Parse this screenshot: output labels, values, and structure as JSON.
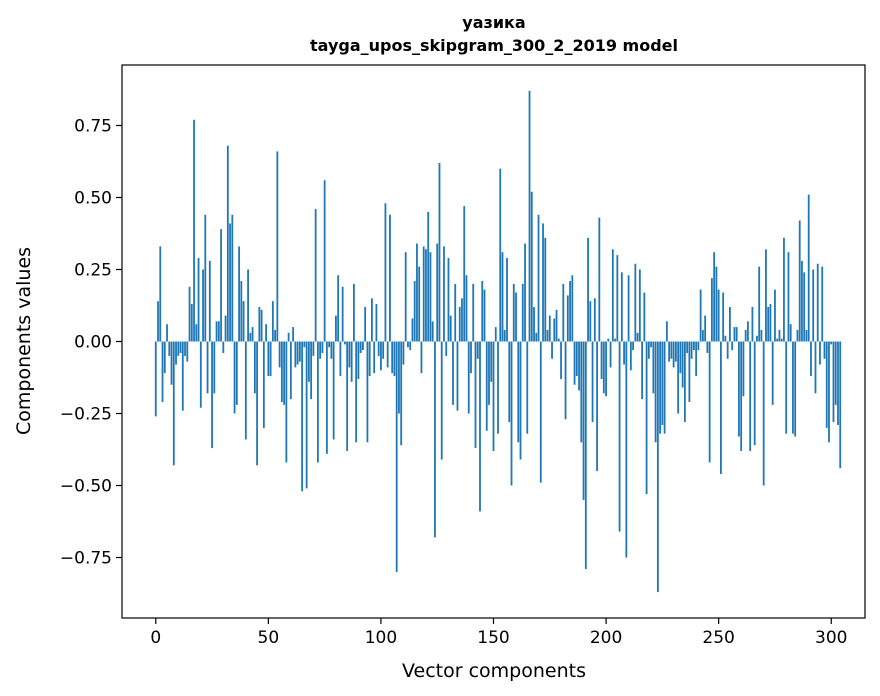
{
  "chart_data": {
    "type": "bar",
    "title": "уазика",
    "subtitle": "tayga_upos_skipgram_300_2_2019 model",
    "xlabel": "Vector components",
    "ylabel": "Components values",
    "xlim": [
      -15,
      315
    ],
    "ylim": [
      -0.96,
      0.96
    ],
    "xticks": [
      0,
      50,
      100,
      150,
      200,
      250,
      300
    ],
    "yticks": [
      -0.75,
      -0.5,
      -0.25,
      0.0,
      0.25,
      0.5,
      0.75
    ],
    "xtick_labels": [
      "0",
      "50",
      "100",
      "150",
      "200",
      "250",
      "300"
    ],
    "ytick_labels": [
      "−0.75",
      "−0.50",
      "−0.25",
      "0.00",
      "0.25",
      "0.50",
      "0.75"
    ],
    "color": "#1f77b4",
    "values": [
      -0.26,
      0.14,
      0.33,
      -0.21,
      -0.11,
      0.06,
      -0.05,
      -0.15,
      -0.43,
      -0.08,
      -0.05,
      -0.04,
      -0.24,
      -0.05,
      -0.07,
      0.19,
      0.13,
      0.77,
      0.06,
      0.29,
      -0.23,
      0.25,
      0.44,
      -0.18,
      0.28,
      -0.37,
      -0.18,
      0.07,
      0.07,
      0.39,
      -0.04,
      0.09,
      0.68,
      0.41,
      0.44,
      -0.25,
      -0.22,
      0.33,
      0.21,
      0.14,
      -0.34,
      0.25,
      0.03,
      0.05,
      -0.18,
      -0.43,
      0.12,
      0.11,
      -0.3,
      0.06,
      -0.12,
      -0.12,
      0.14,
      0.04,
      0.66,
      -0.09,
      -0.21,
      -0.22,
      -0.42,
      0.03,
      -0.2,
      0.05,
      -0.09,
      -0.08,
      -0.07,
      -0.52,
      -0.02,
      -0.51,
      -0.14,
      -0.2,
      -0.05,
      0.46,
      -0.42,
      -0.06,
      -0.04,
      0.56,
      -0.39,
      -0.02,
      -0.06,
      -0.34,
      0.09,
      0.23,
      -0.12,
      0.19,
      -0.01,
      -0.38,
      -0.09,
      -0.14,
      0.2,
      -0.35,
      -0.13,
      -0.04,
      -0.03,
      0.12,
      -0.35,
      -0.12,
      0.15,
      -0.11,
      0.13,
      -0.05,
      -0.1,
      -0.06,
      0.48,
      -0.09,
      0.44,
      -0.11,
      -0.12,
      -0.8,
      -0.25,
      -0.36,
      -0.08,
      0.31,
      -0.02,
      -0.03,
      0.08,
      0.21,
      0.34,
      0.26,
      -0.11,
      0.33,
      0.32,
      0.45,
      0.31,
      0.07,
      -0.68,
      0.34,
      0.62,
      -0.41,
      0.33,
      -0.05,
      0.29,
      0.09,
      -0.22,
      0.2,
      -0.24,
      0.12,
      0.15,
      0.47,
      0.23,
      -0.25,
      -0.11,
      0.2,
      -0.37,
      -0.06,
      -0.59,
      0.21,
      0.18,
      -0.31,
      -0.22,
      -0.14,
      -0.38,
      0.05,
      -0.32,
      0.6,
      0.31,
      0.04,
      0.29,
      -0.28,
      -0.5,
      0.2,
      0.17,
      -0.35,
      -0.41,
      0.2,
      0.34,
      -0.32,
      0.87,
      0.52,
      0.12,
      0.03,
      0.44,
      -0.49,
      0.41,
      0.36,
      0.04,
      0.09,
      -0.06,
      0.08,
      0.11,
      0.01,
      -0.13,
      0.2,
      -0.27,
      0.16,
      0.21,
      0.23,
      -0.15,
      -0.12,
      -0.17,
      -0.35,
      -0.55,
      -0.79,
      0.36,
      0.14,
      -0.28,
      0.15,
      -0.45,
      0.43,
      -0.13,
      -0.18,
      -0.19,
      0.01,
      -0.09,
      0.32,
      0.01,
      0.3,
      -0.66,
      0.24,
      -0.08,
      -0.75,
      0.23,
      -0.1,
      -0.03,
      0.27,
      0.03,
      0.25,
      -0.2,
      0.17,
      -0.53,
      -0.06,
      -0.02,
      -0.18,
      -0.35,
      -0.87,
      -0.32,
      -0.29,
      -0.32,
      0.07,
      -0.07,
      -0.06,
      -0.09,
      -0.07,
      -0.25,
      -0.11,
      -0.16,
      -0.28,
      -0.04,
      -0.21,
      -0.06,
      -0.03,
      -0.12,
      -0.03,
      0.18,
      0.04,
      0.09,
      -0.04,
      -0.42,
      0.22,
      0.31,
      0.26,
      0.18,
      -0.46,
      0.17,
      0.02,
      -0.06,
      0.12,
      -0.03,
      0.05,
      0.05,
      -0.33,
      -0.38,
      -0.19,
      0.04,
      0.07,
      -0.38,
      0.12,
      -0.36,
      0.02,
      0.26,
      0.04,
      -0.5,
      0.32,
      0.12,
      0.13,
      -0.22,
      0.18,
      0.01,
      0.04,
      0.01,
      0.36,
      -0.32,
      0.31,
      0.06,
      -0.32,
      -0.33,
      0.04,
      0.42,
      0.28,
      0.24,
      0.04,
      0.51,
      -0.12,
      0.25,
      -0.18,
      0.27,
      -0.08,
      0.26,
      -0.06,
      -0.3,
      -0.35,
      -0.01,
      -0.28,
      -0.22,
      -0.29,
      -0.44
    ]
  }
}
